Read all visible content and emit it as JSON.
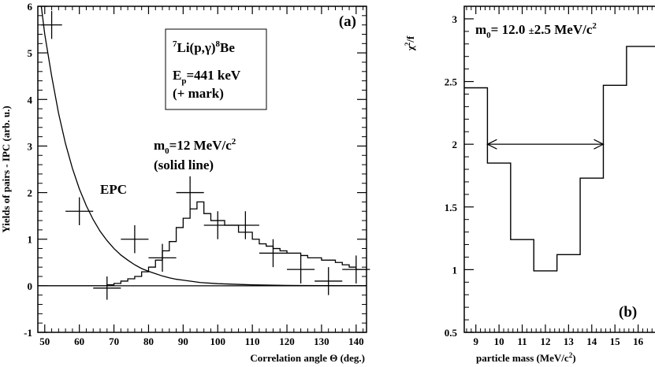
{
  "chart_data": [
    {
      "type": "scatter",
      "panel": "(a)",
      "xlabel": "Correlation angle Θ (deg.)",
      "ylabel": "Yields of pairs - IPC (arb. u.)",
      "xlim": [
        48,
        143
      ],
      "ylim": [
        -1,
        6
      ],
      "xticks": [
        50,
        60,
        70,
        80,
        90,
        100,
        110,
        120,
        130,
        140
      ],
      "yticks": [
        -1,
        0,
        1,
        2,
        3,
        4,
        5,
        6
      ],
      "series": [
        {
          "name": "+ mark",
          "kind": "data-crosses",
          "points": [
            {
              "x": 52,
              "y": 5.6,
              "xerr": 3,
              "yerr": 0.3
            },
            {
              "x": 60,
              "y": 1.6,
              "xerr": 4,
              "yerr": 0.3
            },
            {
              "x": 68,
              "y": -0.05,
              "xerr": 4,
              "yerr": 0.25
            },
            {
              "x": 76,
              "y": 1.0,
              "xerr": 4,
              "yerr": 0.3
            },
            {
              "x": 84,
              "y": 0.6,
              "xerr": 4,
              "yerr": 0.3
            },
            {
              "x": 92,
              "y": 2.0,
              "xerr": 4,
              "yerr": 0.35
            },
            {
              "x": 100,
              "y": 1.3,
              "xerr": 4,
              "yerr": 0.3
            },
            {
              "x": 108,
              "y": 1.3,
              "xerr": 4,
              "yerr": 0.3
            },
            {
              "x": 116,
              "y": 0.7,
              "xerr": 4,
              "yerr": 0.3
            },
            {
              "x": 124,
              "y": 0.35,
              "xerr": 4,
              "yerr": 0.3
            },
            {
              "x": 132,
              "y": 0.1,
              "xerr": 4,
              "yerr": 0.3
            },
            {
              "x": 140,
              "y": 0.35,
              "xerr": 4,
              "yerr": 0.3
            }
          ]
        },
        {
          "name": "solid line",
          "kind": "histogram",
          "bin_edges": [
            48,
            50,
            52,
            54,
            56,
            58,
            60,
            62,
            64,
            66,
            68,
            70,
            72,
            74,
            76,
            78,
            80,
            82,
            84,
            86,
            88,
            90,
            92,
            94,
            96,
            98,
            100,
            102,
            104,
            106,
            108,
            110,
            112,
            114,
            116,
            118,
            120,
            122,
            124,
            126,
            128,
            130,
            132,
            134,
            136,
            138,
            140,
            142,
            143
          ],
          "values": [
            0,
            0,
            0,
            0,
            0,
            0,
            0,
            0,
            0,
            0,
            0.02,
            0.05,
            0.1,
            0.15,
            0.2,
            0.3,
            0.4,
            0.55,
            0.75,
            0.95,
            1.25,
            1.45,
            1.65,
            1.8,
            1.55,
            1.4,
            1.4,
            1.3,
            1.3,
            1.15,
            1.15,
            1.0,
            0.9,
            0.85,
            0.8,
            0.75,
            0.7,
            0.7,
            0.65,
            0.6,
            0.6,
            0.55,
            0.55,
            0.5,
            0.45,
            0.4,
            0.35,
            0.35
          ]
        },
        {
          "name": "EPC",
          "kind": "exponential-curve",
          "x": [
            49,
            50,
            52,
            54,
            56,
            58,
            60,
            62,
            64,
            66,
            68,
            70,
            72,
            74,
            76,
            78,
            80,
            82,
            84,
            86,
            88,
            90,
            95,
            100,
            110,
            120,
            130,
            143
          ],
          "y": [
            6.0,
            5.4,
            4.5,
            3.7,
            3.05,
            2.52,
            2.08,
            1.72,
            1.42,
            1.17,
            0.97,
            0.8,
            0.66,
            0.55,
            0.45,
            0.37,
            0.31,
            0.26,
            0.21,
            0.17,
            0.14,
            0.12,
            0.07,
            0.045,
            0.02,
            0.008,
            0.003,
            0.001
          ]
        }
      ],
      "annotations": {
        "label_epc": "EPC",
        "label_mass": "m0=12 MeV/c2",
        "label_solid": "(solid line)",
        "box_reaction_pre": "7",
        "box_reaction_mid": "Li(p,γ)",
        "box_reaction_sup": "8",
        "box_reaction_post": "Be",
        "box_energy": "Ep=441 keV",
        "box_mark": "(+ mark)"
      }
    },
    {
      "type": "line",
      "panel": "(b)",
      "xlabel": "particle mass (MeV/c²)",
      "ylabel": "χ²/f",
      "xlim": [
        8.5,
        17
      ],
      "ylim": [
        0.5,
        3.1
      ],
      "xticks": [
        9,
        10,
        11,
        12,
        13,
        14,
        15,
        16
      ],
      "yticks": [
        0.5,
        1,
        1.5,
        2,
        2.5,
        3
      ],
      "series": [
        {
          "name": "chi2",
          "kind": "step",
          "bin_edges": [
            8.5,
            9.5,
            10.5,
            11.5,
            12.5,
            13.5,
            14.5,
            15.5,
            17
          ],
          "values": [
            2.45,
            1.85,
            1.24,
            0.99,
            1.12,
            1.73,
            2.47,
            2.78
          ]
        }
      ],
      "interval": {
        "x1": 9.5,
        "x2": 14.5,
        "y": 2.0
      },
      "annotations": {
        "result": "m0= 12.0 ±2.5 MeV/c2"
      }
    }
  ],
  "panel_a": {
    "label": "(a)",
    "ylabel": "Yields of pairs - IPC (arb. u.)",
    "xlabel": "Correlation angle Θ (deg.)",
    "epc": "EPC",
    "m0_main": "m",
    "m0_sub": "0",
    "m0_rest": "=12 MeV/c",
    "m0_sup": "2",
    "solid": "(solid line)",
    "box_sup1": "7",
    "box_mid": "Li(p,γ)",
    "box_sup2": "8",
    "box_end": "Be",
    "box_ep_main": "E",
    "box_ep_sub": "p",
    "box_ep_rest": "=441 keV",
    "box_mark": "(+ mark)"
  },
  "panel_b": {
    "label": "(b)",
    "ylabel_main": "χ",
    "ylabel_sup": "2",
    "ylabel_rest": "/f",
    "xlabel_main": "particle mass (MeV/c",
    "xlabel_sup": "2",
    "xlabel_end": ")",
    "result_main": "m",
    "result_sub": "0",
    "result_rest": "= 12.0 ",
    "result_pm": "±",
    "result_val": "2.5 MeV/c",
    "result_sup": "2"
  }
}
